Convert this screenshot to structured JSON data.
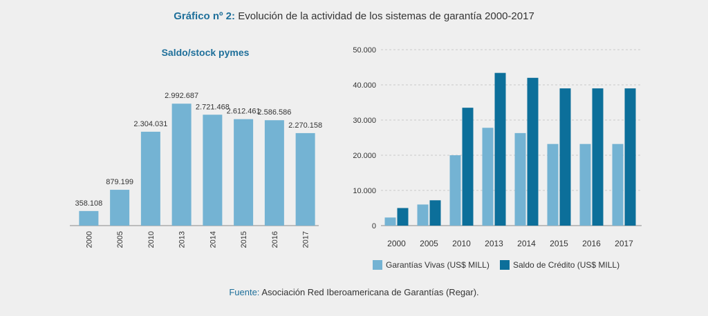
{
  "title": {
    "prefix": "Gráfico nº 2:",
    "text": "Evolución de la actividad de los sistemas de garantía 2000-2017"
  },
  "footer": {
    "prefix": "Fuente:",
    "text": "Asociación Red Iberoamericana de Garantías (Regar)."
  },
  "colors": {
    "light_bar": "#74b3d3",
    "dark_bar": "#0c6f9a",
    "accent_text": "#1e6f9a"
  },
  "chart_data": [
    {
      "type": "bar",
      "title": "Saldo/stock pymes",
      "categories": [
        "2000",
        "2005",
        "2010",
        "2013",
        "2014",
        "2015",
        "2016",
        "2017"
      ],
      "values": [
        358108,
        879199,
        2304031,
        2992687,
        2721468,
        2612461,
        2586586,
        2270158
      ],
      "value_labels": [
        "358.108",
        "879.199",
        "2.304.031",
        "2.992.687",
        "2.721.468",
        "2.612.461",
        "2.586.586",
        "2.270.158"
      ],
      "ylim": [
        0,
        3200000
      ],
      "grid": false,
      "xtick_rotation": "vertical"
    },
    {
      "type": "bar",
      "categories": [
        "2000",
        "2005",
        "2010",
        "2013",
        "2014",
        "2015",
        "2016",
        "2017"
      ],
      "series": [
        {
          "name": "Garantías Vivas (US$ MILL)",
          "values": [
            2300,
            6000,
            20000,
            27800,
            26300,
            23200,
            23200,
            23200
          ]
        },
        {
          "name": "Saldo de Crédito (US$ MILL)",
          "values": [
            5000,
            7200,
            33500,
            43400,
            42000,
            39000,
            39000,
            39000
          ]
        }
      ],
      "ylim": [
        0,
        50000
      ],
      "yticks": [
        0,
        10000,
        20000,
        30000,
        40000,
        50000
      ],
      "ytick_labels": [
        "0",
        "10.000",
        "20.000",
        "30.000",
        "40.000",
        "50.000"
      ],
      "grid": true,
      "legend_position": "bottom"
    }
  ]
}
